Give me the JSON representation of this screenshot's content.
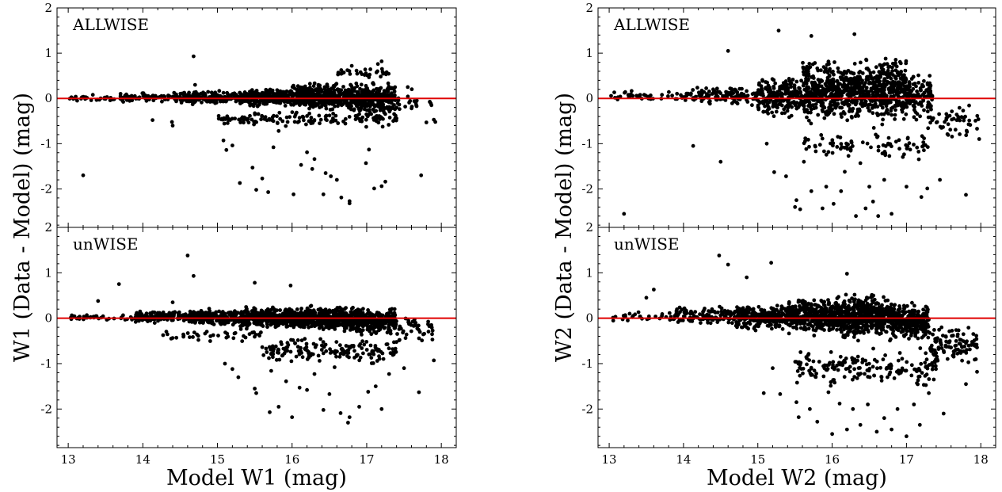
{
  "figure": {
    "left_ylabel": "W1 (Data - Model) (mag)",
    "right_ylabel": "W2 (Data - Model) (mag)",
    "left_xlabel": "Model W1 (mag)",
    "right_xlabel": "Model W2 (mag)"
  },
  "colors": {
    "points": "#000000",
    "zero_line": "#e00000",
    "axes": "#000000"
  },
  "chart_data": [
    {
      "type": "scatter",
      "panel_label": "ALLWISE",
      "xlim": [
        12.85,
        18.2
      ],
      "ylim": [
        -2.85,
        2
      ],
      "xticks": [
        "13",
        "14",
        "15",
        "16",
        "17",
        "18"
      ],
      "yticks": [
        "2",
        "1",
        "0",
        "-1",
        "-2"
      ],
      "hline": 0,
      "x": [
        13.2,
        14.13,
        14.39,
        14.4,
        14.68,
        15.08,
        15.12,
        15.2,
        15.3,
        15.47,
        15.52,
        15.6,
        15.68,
        15.75,
        15.82,
        16.02,
        16.12,
        16.2,
        16.27,
        16.3,
        16.42,
        16.45,
        16.52,
        16.6,
        16.66,
        16.77,
        16.77,
        16.99,
        17.03,
        17.1,
        17.2,
        17.25,
        17.73,
        17.92,
        13.12,
        13.33,
        13.52,
        13.7,
        14.7,
        16.8,
        16.98,
        17.15,
        17.2,
        17.55,
        17.8,
        17.9
      ],
      "y": [
        -1.7,
        -0.48,
        -0.52,
        -0.6,
        0.93,
        -0.93,
        -1.14,
        -1.04,
        -1.87,
        -1.53,
        -2.02,
        -1.77,
        -2.07,
        -1.08,
        -0.72,
        -2.12,
        -1.47,
        -1.19,
        -1.56,
        -1.34,
        -2.12,
        -1.65,
        -1.72,
        -1.8,
        -2.19,
        -2.27,
        -2.32,
        -1.43,
        -1.13,
        -1.99,
        -1.94,
        -1.84,
        -1.7,
        -0.52,
        -0.05,
        0.08,
        0.03,
        0.05,
        0.3,
        0.72,
        0.64,
        0.76,
        0.82,
        0.25,
        -0.53,
        -0.47
      ],
      "cloud": [
        {
          "x": [
            13.0,
            13.7
          ],
          "y": [
            -0.08,
            0.08
          ],
          "n": 28
        },
        {
          "x": [
            13.7,
            14.5
          ],
          "y": [
            -0.12,
            0.16
          ],
          "n": 80
        },
        {
          "x": [
            14.5,
            15.3
          ],
          "y": [
            -0.15,
            0.2
          ],
          "n": 170
        },
        {
          "x": [
            15.3,
            16.0
          ],
          "y": [
            -0.22,
            0.28
          ],
          "n": 280
        },
        {
          "x": [
            16.0,
            16.7
          ],
          "y": [
            -0.3,
            0.38
          ],
          "n": 340
        },
        {
          "x": [
            16.7,
            17.4
          ],
          "y": [
            -0.45,
            0.45
          ],
          "n": 340
        },
        {
          "x": [
            17.4,
            17.9
          ],
          "y": [
            -0.4,
            0.25
          ],
          "n": 22
        },
        {
          "x": [
            15.0,
            17.4
          ],
          "y": [
            -0.65,
            -0.25
          ],
          "n": 140
        },
        {
          "x": [
            16.6,
            17.3
          ],
          "y": [
            0.4,
            0.7
          ],
          "n": 30
        }
      ]
    },
    {
      "type": "scatter",
      "panel_label": "unWISE",
      "xlim": [
        12.85,
        18.2
      ],
      "ylim": [
        -2.85,
        2
      ],
      "xticks": [
        "13",
        "14",
        "15",
        "16",
        "17",
        "18"
      ],
      "yticks": [
        "2",
        "1",
        "0",
        "-1",
        "-2"
      ],
      "hline": 0,
      "x": [
        14.6,
        14.68,
        13.68,
        13.4,
        14.38,
        15.1,
        15.2,
        15.28,
        15.5,
        15.52,
        15.7,
        15.72,
        15.82,
        15.92,
        16.0,
        16.1,
        16.2,
        16.3,
        16.42,
        16.5,
        16.57,
        16.65,
        16.75,
        16.77,
        16.9,
        17.02,
        17.12,
        17.2,
        17.3,
        17.5,
        17.7,
        17.9,
        17.88,
        15.5,
        15.98,
        14.4
      ],
      "y": [
        1.38,
        0.93,
        0.75,
        0.38,
        -0.45,
        -1.0,
        -1.12,
        -1.3,
        -1.55,
        -1.65,
        -2.07,
        -1.16,
        -1.95,
        -1.39,
        -2.18,
        -1.53,
        -1.58,
        -1.23,
        -2.02,
        -1.67,
        -1.08,
        -2.09,
        -2.3,
        -2.18,
        -1.95,
        -1.62,
        -1.5,
        -2.0,
        -1.23,
        -1.1,
        -1.63,
        -0.93,
        -0.47,
        0.78,
        0.72,
        0.35
      ],
      "cloud": [
        {
          "x": [
            13.0,
            13.9
          ],
          "y": [
            -0.08,
            0.1
          ],
          "n": 40
        },
        {
          "x": [
            13.9,
            14.6
          ],
          "y": [
            -0.15,
            0.2
          ],
          "n": 120
        },
        {
          "x": [
            14.6,
            15.3
          ],
          "y": [
            -0.2,
            0.24
          ],
          "n": 230
        },
        {
          "x": [
            15.3,
            16.0
          ],
          "y": [
            -0.26,
            0.28
          ],
          "n": 350
        },
        {
          "x": [
            16.0,
            16.7
          ],
          "y": [
            -0.3,
            0.3
          ],
          "n": 400
        },
        {
          "x": [
            16.7,
            17.4
          ],
          "y": [
            -0.4,
            0.3
          ],
          "n": 380
        },
        {
          "x": [
            17.4,
            17.9
          ],
          "y": [
            -0.6,
            0.1
          ],
          "n": 40
        },
        {
          "x": [
            15.6,
            17.4
          ],
          "y": [
            -1.05,
            -0.35
          ],
          "n": 160
        },
        {
          "x": [
            14.2,
            15.6
          ],
          "y": [
            -0.55,
            -0.2
          ],
          "n": 40
        }
      ]
    },
    {
      "type": "scatter",
      "panel_label": "ALLWISE",
      "xlim": [
        12.85,
        18.2
      ],
      "ylim": [
        -2.85,
        2
      ],
      "xticks": [
        "13",
        "14",
        "15",
        "16",
        "17",
        "18"
      ],
      "yticks": [
        "2",
        "1",
        "0",
        "-1",
        "-2"
      ],
      "hline": 0,
      "x": [
        13.2,
        14.13,
        14.5,
        14.6,
        15.28,
        15.12,
        15.22,
        15.38,
        15.52,
        15.5,
        15.57,
        15.62,
        15.72,
        15.78,
        15.87,
        15.92,
        16.02,
        16.12,
        16.17,
        16.22,
        16.32,
        16.38,
        16.45,
        16.5,
        16.55,
        16.62,
        16.7,
        16.8,
        17.0,
        17.05,
        17.2,
        17.28,
        17.45,
        17.8,
        17.95,
        15.72,
        16.3
      ],
      "y": [
        -2.55,
        -1.05,
        -1.4,
        1.05,
        1.5,
        -1.0,
        -1.63,
        -1.72,
        -2.25,
        -2.4,
        -2.45,
        -1.4,
        -2.05,
        -1.17,
        -2.43,
        -1.95,
        -2.33,
        -2.05,
        -1.62,
        -1.27,
        -2.6,
        -1.43,
        -2.43,
        -1.95,
        -2.28,
        -2.6,
        -1.8,
        -2.55,
        -1.95,
        -1.13,
        -2.18,
        -1.99,
        -1.8,
        -2.13,
        -0.67,
        1.38,
        1.42
      ],
      "cloud": [
        {
          "x": [
            13.0,
            14.0
          ],
          "y": [
            -0.1,
            0.2
          ],
          "n": 40
        },
        {
          "x": [
            14.0,
            15.0
          ],
          "y": [
            -0.2,
            0.3
          ],
          "n": 120
        },
        {
          "x": [
            15.0,
            15.6
          ],
          "y": [
            -0.5,
            0.6
          ],
          "n": 200
        },
        {
          "x": [
            15.6,
            16.3
          ],
          "y": [
            -0.65,
            1.0
          ],
          "n": 400
        },
        {
          "x": [
            16.3,
            17.0
          ],
          "y": [
            -0.7,
            1.05
          ],
          "n": 420
        },
        {
          "x": [
            17.0,
            17.35
          ],
          "y": [
            -0.8,
            0.8
          ],
          "n": 120
        },
        {
          "x": [
            17.35,
            18.0
          ],
          "y": [
            -1.0,
            0.0
          ],
          "n": 45
        },
        {
          "x": [
            15.6,
            17.3
          ],
          "y": [
            -1.4,
            -0.7
          ],
          "n": 80
        }
      ]
    },
    {
      "type": "scatter",
      "panel_label": "unWISE",
      "xlim": [
        12.85,
        18.2
      ],
      "ylim": [
        -2.85,
        2
      ],
      "xticks": [
        "13",
        "14",
        "15",
        "16",
        "17",
        "18"
      ],
      "yticks": [
        "2",
        "1",
        "0",
        "-1",
        "-2"
      ],
      "hline": 0,
      "x": [
        14.48,
        14.6,
        15.18,
        14.85,
        15.08,
        15.2,
        15.3,
        15.52,
        15.55,
        15.7,
        15.8,
        15.95,
        16.0,
        16.1,
        16.2,
        16.28,
        16.38,
        16.48,
        16.6,
        16.7,
        16.8,
        16.88,
        17.0,
        17.1,
        17.18,
        17.3,
        17.5,
        17.8,
        17.95,
        13.6,
        13.5,
        16.2,
        13.25
      ],
      "y": [
        1.38,
        1.18,
        1.22,
        0.9,
        -1.65,
        -1.1,
        -1.67,
        -1.85,
        -2.18,
        -2.0,
        -2.28,
        -1.63,
        -2.55,
        -1.88,
        -2.45,
        -2.0,
        -2.35,
        -1.9,
        -2.5,
        -2.2,
        -2.45,
        -2.0,
        -2.6,
        -1.9,
        -2.35,
        -1.65,
        -2.1,
        -1.45,
        -1.18,
        0.63,
        0.45,
        0.98,
        -0.05
      ],
      "cloud": [
        {
          "x": [
            13.0,
            13.9
          ],
          "y": [
            -0.1,
            0.15
          ],
          "n": 30
        },
        {
          "x": [
            13.9,
            14.7
          ],
          "y": [
            -0.2,
            0.3
          ],
          "n": 120
        },
        {
          "x": [
            14.7,
            15.4
          ],
          "y": [
            -0.3,
            0.35
          ],
          "n": 260
        },
        {
          "x": [
            15.4,
            16.1
          ],
          "y": [
            -0.4,
            0.5
          ],
          "n": 420
        },
        {
          "x": [
            16.1,
            16.8
          ],
          "y": [
            -0.55,
            0.6
          ],
          "n": 460
        },
        {
          "x": [
            16.8,
            17.3
          ],
          "y": [
            -0.6,
            0.45
          ],
          "n": 260
        },
        {
          "x": [
            17.3,
            17.95
          ],
          "y": [
            -1.2,
            0.0
          ],
          "n": 110
        },
        {
          "x": [
            15.5,
            17.4
          ],
          "y": [
            -1.6,
            -0.6
          ],
          "n": 170
        }
      ]
    }
  ]
}
